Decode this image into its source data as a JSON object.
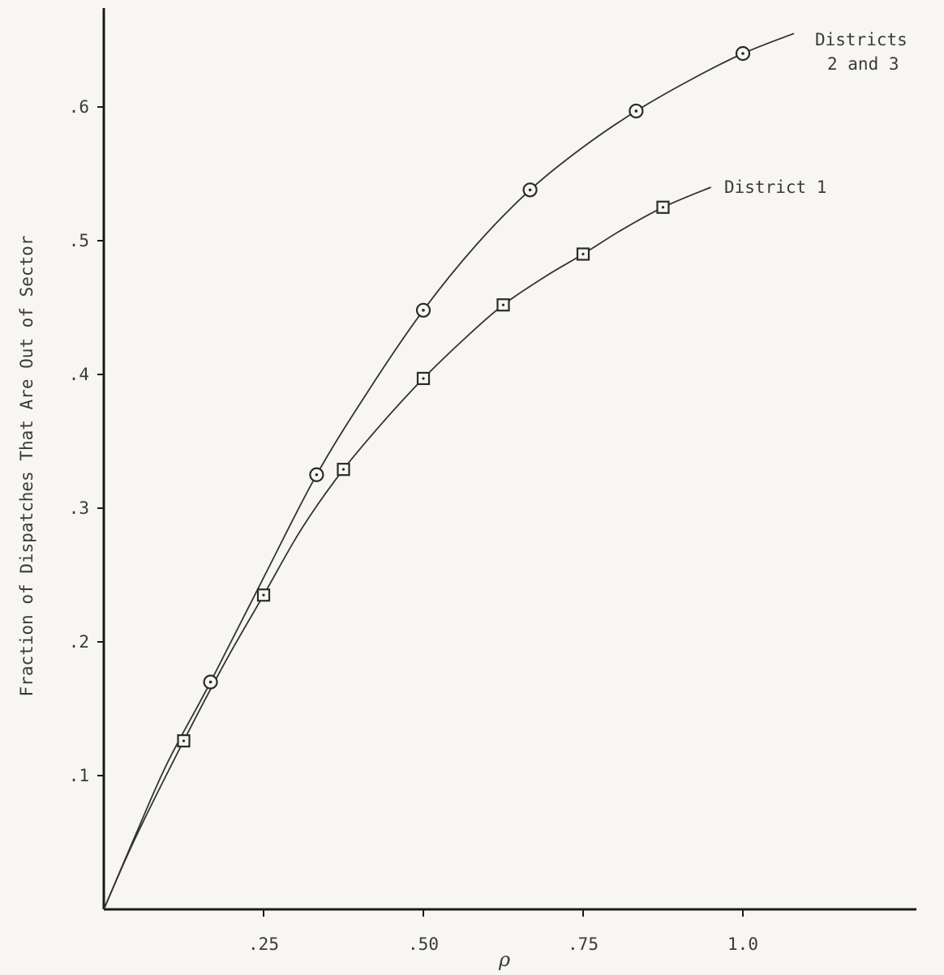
{
  "chart_data": {
    "type": "line",
    "xlabel": "ρ",
    "ylabel": "Fraction of Dispatches That Are Out of Sector",
    "xlim": [
      0,
      1.3
    ],
    "ylim": [
      0,
      0.7
    ],
    "x_ticks": [
      {
        "value": 0.25,
        "label": ".25"
      },
      {
        "value": 0.5,
        "label": ".50"
      },
      {
        "value": 0.75,
        "label": ".75"
      },
      {
        "value": 1.0,
        "label": "1.0"
      }
    ],
    "y_ticks": [
      {
        "value": 0.1,
        "label": ".1"
      },
      {
        "value": 0.2,
        "label": ".2"
      },
      {
        "value": 0.3,
        "label": ".3"
      },
      {
        "value": 0.4,
        "label": ".4"
      },
      {
        "value": 0.5,
        "label": ".5"
      },
      {
        "value": 0.6,
        "label": ".6"
      }
    ],
    "grid": false,
    "series": [
      {
        "name": "Districts 2 and 3",
        "name_lines": [
          "Districts",
          "2 and 3"
        ],
        "marker": "circle",
        "x": [
          0.167,
          0.333,
          0.5,
          0.667,
          0.833,
          1.0
        ],
        "y": [
          0.17,
          0.325,
          0.448,
          0.538,
          0.597,
          0.64
        ],
        "curve": [
          [
            0,
            0
          ],
          [
            0.05,
            0.056
          ],
          [
            0.1,
            0.11
          ],
          [
            0.167,
            0.17
          ],
          [
            0.25,
            0.248
          ],
          [
            0.333,
            0.325
          ],
          [
            0.417,
            0.39
          ],
          [
            0.5,
            0.448
          ],
          [
            0.583,
            0.497
          ],
          [
            0.667,
            0.538
          ],
          [
            0.75,
            0.57
          ],
          [
            0.833,
            0.597
          ],
          [
            0.917,
            0.62
          ],
          [
            1.0,
            0.64
          ],
          [
            1.08,
            0.655
          ]
        ]
      },
      {
        "name": "District 1",
        "name_lines": [
          "District 1"
        ],
        "marker": "square",
        "x": [
          0.125,
          0.25,
          0.375,
          0.5,
          0.625,
          0.75,
          0.875
        ],
        "y": [
          0.126,
          0.235,
          0.329,
          0.397,
          0.452,
          0.49,
          0.525
        ],
        "curve": [
          [
            0,
            0
          ],
          [
            0.05,
            0.054
          ],
          [
            0.125,
            0.126
          ],
          [
            0.19,
            0.185
          ],
          [
            0.25,
            0.235
          ],
          [
            0.31,
            0.285
          ],
          [
            0.375,
            0.329
          ],
          [
            0.44,
            0.366
          ],
          [
            0.5,
            0.397
          ],
          [
            0.565,
            0.427
          ],
          [
            0.625,
            0.452
          ],
          [
            0.69,
            0.473
          ],
          [
            0.75,
            0.49
          ],
          [
            0.81,
            0.508
          ],
          [
            0.875,
            0.525
          ],
          [
            0.95,
            0.54
          ]
        ]
      }
    ]
  }
}
